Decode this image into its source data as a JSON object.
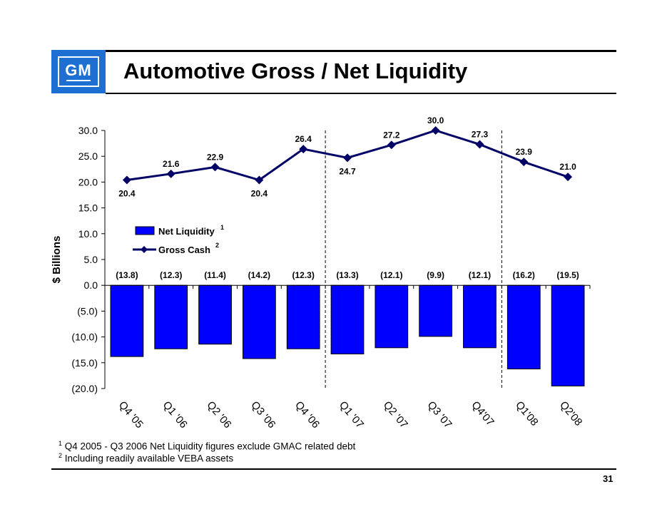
{
  "page": {
    "title": "Automotive Gross / Net Liquidity",
    "logo_text": "GM",
    "page_number": "31"
  },
  "footnotes": [
    {
      "mark": "1",
      "text": "Q4 2005 - Q3 2006 Net Liquidity figures exclude GMAC related debt"
    },
    {
      "mark": "2",
      "text": "Including readily available VEBA assets"
    }
  ],
  "colors": {
    "bar_fill": "#0000ff",
    "bar_stroke": "#000000",
    "line": "#000066",
    "logo_blue": "#1d6fd1"
  },
  "chart_data": {
    "type": "bar+line",
    "ylabel": "$ Billions",
    "ylim": [
      -20,
      30
    ],
    "yticks": [
      30,
      25,
      20,
      15,
      10,
      5,
      0,
      -5,
      -10,
      -15,
      -20
    ],
    "ytick_labels": [
      "30.0",
      "25.0",
      "20.0",
      "15.0",
      "10.0",
      "5.0",
      "0.0",
      "(5.0)",
      "(10.0)",
      "(15.0)",
      "(20.0)"
    ],
    "categories": [
      "Q4 '05",
      "Q1 '06",
      "Q2 '06",
      "Q3 '06",
      "Q4 '06",
      "Q1 '07",
      "Q2 '07",
      "Q3 '07",
      "Q4'07",
      "Q1'08",
      "Q2'08"
    ],
    "series": [
      {
        "name": "Net Liquidity",
        "superscript": "1",
        "kind": "bar",
        "values": [
          -13.8,
          -12.3,
          -11.4,
          -14.2,
          -12.3,
          -13.3,
          -12.1,
          -9.9,
          -12.1,
          -16.2,
          -19.5
        ],
        "labels": [
          "(13.8)",
          "(12.3)",
          "(11.4)",
          "(14.2)",
          "(12.3)",
          "(13.3)",
          "(12.1)",
          "(9.9)",
          "(12.1)",
          "(16.2)",
          "(19.5)"
        ]
      },
      {
        "name": "Gross Cash",
        "superscript": "2",
        "kind": "line",
        "values": [
          20.4,
          21.6,
          22.9,
          20.4,
          26.4,
          24.7,
          27.2,
          30.0,
          27.3,
          23.9,
          21.0
        ],
        "labels": [
          "20.4",
          "21.6",
          "22.9",
          "20.4",
          "26.4",
          "24.7",
          "27.2",
          "30.0",
          "27.3",
          "23.9",
          "21.0"
        ],
        "label_positions": [
          "below",
          "above",
          "above",
          "below",
          "above",
          "below",
          "above",
          "above",
          "above",
          "above",
          "above"
        ]
      }
    ],
    "dividers_after_index": [
      4,
      8
    ],
    "legend_position": "upper-left inside plot"
  }
}
